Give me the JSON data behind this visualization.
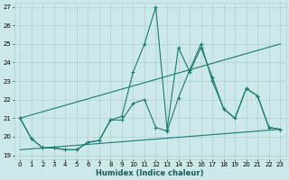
{
  "bg_color": "#cce8e8",
  "grid_color": "#b0d0d0",
  "line_color": "#1a7a6e",
  "xlabel": "Humidex (Indice chaleur)",
  "xlim": [
    -0.5,
    23.5
  ],
  "ylim": [
    18.8,
    27.2
  ],
  "yticks": [
    19,
    20,
    21,
    22,
    23,
    24,
    25,
    26,
    27
  ],
  "xticks": [
    0,
    1,
    2,
    3,
    4,
    5,
    6,
    7,
    8,
    9,
    10,
    11,
    12,
    13,
    14,
    15,
    16,
    17,
    18,
    19,
    20,
    21,
    22,
    23
  ],
  "series": [
    {
      "x": [
        0,
        1,
        2,
        3,
        4,
        5,
        6,
        7,
        8,
        9,
        10,
        11,
        12,
        13,
        14,
        15,
        16,
        17,
        18,
        19,
        20,
        21,
        22,
        23
      ],
      "y": [
        21.0,
        19.9,
        19.4,
        19.4,
        19.3,
        19.3,
        19.7,
        19.8,
        20.9,
        21.1,
        23.5,
        25.0,
        27.0,
        20.4,
        24.8,
        23.5,
        24.8,
        23.2,
        21.5,
        21.0,
        22.6,
        22.2,
        20.5,
        20.4
      ],
      "marker": true
    },
    {
      "x": [
        0,
        1,
        2,
        3,
        4,
        5,
        6,
        7,
        8,
        9,
        10,
        11,
        12,
        13,
        14,
        15,
        16,
        17,
        18,
        19,
        20,
        21,
        22,
        23
      ],
      "y": [
        21.0,
        19.9,
        19.4,
        19.4,
        19.3,
        19.3,
        19.7,
        19.8,
        20.9,
        20.9,
        21.8,
        22.0,
        20.5,
        20.3,
        22.1,
        23.6,
        25.0,
        23.0,
        21.5,
        21.0,
        22.6,
        22.2,
        20.5,
        20.4
      ],
      "marker": true
    },
    {
      "x": [
        0,
        23
      ],
      "y": [
        21.0,
        25.0
      ],
      "marker": false
    },
    {
      "x": [
        0,
        23
      ],
      "y": [
        19.3,
        20.4
      ],
      "marker": false
    }
  ]
}
